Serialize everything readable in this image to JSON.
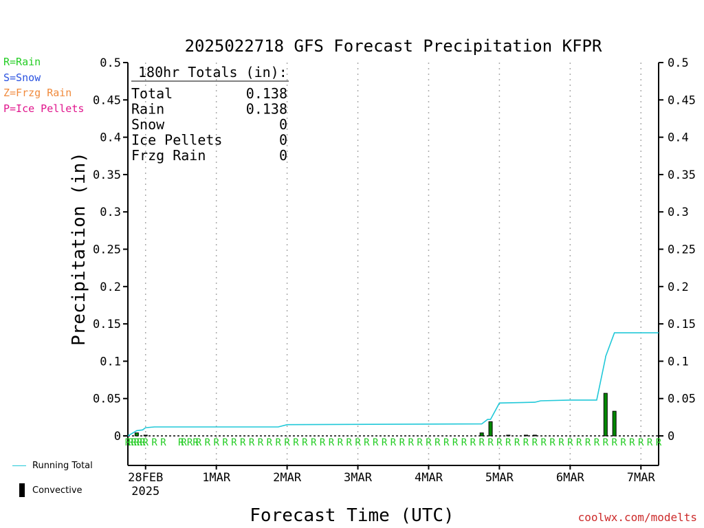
{
  "colors": {
    "rain": "#22cc22",
    "snow": "#2a52e0",
    "frzg_rain": "#f08a3c",
    "ice_pellets": "#e0148c",
    "running_total": "#20c8d8",
    "convective": "#000000",
    "credit": "#cc2a2a"
  },
  "type_legend": [
    {
      "label": "R=Rain",
      "color_key": "rain"
    },
    {
      "label": "S=Snow",
      "color_key": "snow"
    },
    {
      "label": "Z=Frzg Rain",
      "color_key": "frzg_rain"
    },
    {
      "label": "P=Ice Pellets",
      "color_key": "ice_pellets"
    }
  ],
  "series_legend": {
    "running_total": "Running Total",
    "convective": "Convective"
  },
  "credit": "coolwx.com/modelts",
  "chart_data": {
    "type": "bar",
    "title": "2025022718 GFS Forecast Precipitation KFPR",
    "xlabel": "Forecast Time (UTC)",
    "ylabel": "Precipitation (in)",
    "ylim": [
      0,
      0.5
    ],
    "yticks": [
      0,
      0.05,
      0.1,
      0.15,
      0.2,
      0.25,
      0.3,
      0.35,
      0.4,
      0.45,
      0.5
    ],
    "ytick_labels": [
      "0",
      "0.05",
      "0.1",
      "0.15",
      "0.2",
      "0.25",
      "0.3",
      "0.35",
      "0.4",
      "0.45",
      "0.5"
    ],
    "x_unit": "forecast hour",
    "xlim": [
      0,
      180
    ],
    "xticks": [
      {
        "hour": 6,
        "label": "28FEB",
        "sublabel": "2025"
      },
      {
        "hour": 30,
        "label": "1MAR"
      },
      {
        "hour": 54,
        "label": "2MAR"
      },
      {
        "hour": 78,
        "label": "3MAR"
      },
      {
        "hour": 102,
        "label": "4MAR"
      },
      {
        "hour": 126,
        "label": "5MAR"
      },
      {
        "hour": 150,
        "label": "6MAR"
      },
      {
        "hour": 174,
        "label": "7MAR"
      }
    ],
    "grid": "vertical dotted at day ticks",
    "totals_box": {
      "heading": "180hr Totals (in):",
      "rows": [
        {
          "label": "Total",
          "value": "0.138"
        },
        {
          "label": "Rain",
          "value": "0.138"
        },
        {
          "label": "Snow",
          "value": "0"
        },
        {
          "label": "Ice Pellets",
          "value": "0"
        },
        {
          "label": "Frzg Rain",
          "value": "0"
        }
      ]
    },
    "series": [
      {
        "name": "Running Total",
        "kind": "line",
        "x": [
          0,
          3,
          5,
          6,
          9,
          51,
          54,
          120,
          122,
          123,
          126,
          138,
          140,
          150,
          159,
          162,
          162,
          165,
          180
        ],
        "y": [
          0,
          0.007,
          0.008,
          0.011,
          0.012,
          0.012,
          0.015,
          0.016,
          0.022,
          0.022,
          0.044,
          0.045,
          0.047,
          0.048,
          0.048,
          0.105,
          0.106,
          0.138,
          0.138
        ]
      },
      {
        "name": "Convective",
        "kind": "bar",
        "x": [
          3,
          6,
          120,
          123,
          129,
          135,
          138,
          162,
          165
        ],
        "y": [
          0.004,
          0.001,
          0.004,
          0.019,
          0.001,
          0.001,
          0.001,
          0.057,
          0.033
        ]
      }
    ],
    "precip_type_markers": {
      "symbol": "R",
      "hours": [
        0,
        1,
        2,
        3,
        4,
        5,
        6,
        9,
        12,
        18,
        19,
        21,
        23,
        24,
        27,
        30,
        33,
        36,
        39,
        42,
        45,
        48,
        51,
        54,
        57,
        60,
        63,
        66,
        69,
        72,
        75,
        78,
        81,
        84,
        87,
        90,
        93,
        96,
        99,
        102,
        105,
        108,
        111,
        114,
        117,
        120,
        123,
        126,
        129,
        132,
        135,
        138,
        141,
        144,
        147,
        150,
        153,
        156,
        159,
        162,
        165,
        168,
        171,
        174,
        177,
        180
      ]
    }
  }
}
